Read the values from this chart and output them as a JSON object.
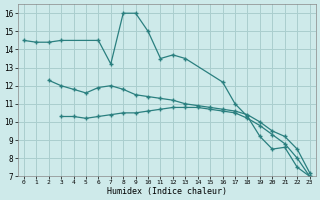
{
  "xlabel": "Humidex (Indice chaleur)",
  "background_color": "#ceeaea",
  "grid_color": "#aacece",
  "line_color": "#2a7f7f",
  "series1_x": [
    0,
    1,
    2,
    3,
    6,
    7,
    8,
    9,
    10,
    11,
    12,
    13,
    16,
    17,
    18,
    19,
    20,
    21,
    22,
    23
  ],
  "series1_y": [
    14.5,
    14.4,
    14.4,
    14.5,
    14.5,
    13.2,
    16.0,
    16.0,
    15.0,
    13.5,
    13.7,
    13.5,
    12.2,
    11.0,
    10.3,
    9.2,
    8.5,
    8.6,
    7.5,
    7.0
  ],
  "series2_x": [
    2,
    3,
    4,
    5,
    6,
    7,
    8,
    9,
    10,
    11,
    12,
    13,
    14,
    15,
    16,
    17,
    18,
    19,
    20,
    21,
    22,
    23
  ],
  "series2_y": [
    12.3,
    12.0,
    11.8,
    11.6,
    11.9,
    12.0,
    11.8,
    11.5,
    11.4,
    11.3,
    11.2,
    11.0,
    10.9,
    10.8,
    10.7,
    10.6,
    10.4,
    10.0,
    9.5,
    9.2,
    8.5,
    7.2
  ],
  "series3_x": [
    3,
    4,
    5,
    6,
    7,
    8,
    9,
    10,
    11,
    12,
    13,
    14,
    15,
    16,
    17,
    18,
    19,
    20,
    21,
    22,
    23
  ],
  "series3_y": [
    10.3,
    10.3,
    10.2,
    10.3,
    10.4,
    10.5,
    10.5,
    10.6,
    10.7,
    10.8,
    10.8,
    10.8,
    10.7,
    10.6,
    10.5,
    10.2,
    9.8,
    9.3,
    8.8,
    8.0,
    7.0
  ],
  "ylim": [
    7,
    16.5
  ],
  "xlim": [
    -0.5,
    23.5
  ],
  "yticks": [
    7,
    8,
    9,
    10,
    11,
    12,
    13,
    14,
    15,
    16
  ],
  "xticks": [
    0,
    1,
    2,
    3,
    4,
    5,
    6,
    7,
    8,
    9,
    10,
    11,
    12,
    13,
    14,
    15,
    16,
    17,
    18,
    19,
    20,
    21,
    22,
    23
  ]
}
